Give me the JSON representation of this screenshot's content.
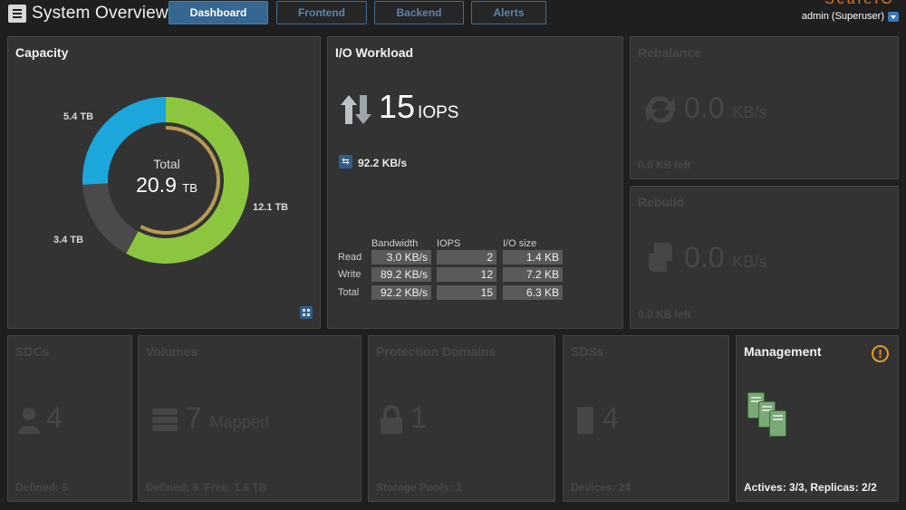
{
  "header": {
    "title": "System Overview",
    "tabs": [
      {
        "label": "Dashboard",
        "active": true
      },
      {
        "label": "Frontend",
        "active": false
      },
      {
        "label": "Backend",
        "active": false
      },
      {
        "label": "Alerts",
        "active": false
      }
    ],
    "brand": "ScaleIO",
    "user": "admin (Superuser)",
    "menu_icon": "hamburger-icon",
    "user_menu_icon": "chevron-down-icon"
  },
  "capacity": {
    "title": "Capacity",
    "total_label": "Total",
    "total_value": "20.9",
    "total_unit": "TB",
    "segments": [
      {
        "label": "12.1 TB",
        "value": 12.1,
        "color": "#8cc63f"
      },
      {
        "label": "3.4 TB",
        "value": 3.4,
        "color": "#4a4a4a"
      },
      {
        "label": "5.4 TB",
        "value": 5.4,
        "color": "#1ba6dc"
      }
    ],
    "inner_ring_color": "#b79a55",
    "icon": "grid-icon"
  },
  "io": {
    "title": "I/O Workload",
    "iops_value": "15",
    "iops_unit": "IOPS",
    "bandwidth": "92.2 KB/s",
    "headers": [
      "Bandwidth",
      "IOPS",
      "I/O size"
    ],
    "rows": [
      {
        "label": "Read",
        "bandwidth": "3.0 KB/s",
        "iops": "2",
        "size": "1.4 KB"
      },
      {
        "label": "Write",
        "bandwidth": "89.2 KB/s",
        "iops": "12",
        "size": "7.2 KB"
      },
      {
        "label": "Total",
        "bandwidth": "92.2 KB/s",
        "iops": "15",
        "size": "6.3 KB"
      }
    ]
  },
  "rebalance": {
    "title": "Rebalance",
    "value": "0.0",
    "unit": "KB/s",
    "footer": "0.0 KB left"
  },
  "rebuild": {
    "title": "Rebuild",
    "value": "0.0",
    "unit": "KB/s",
    "footer": "0.0 KB left"
  },
  "sdcs": {
    "title": "SDCs",
    "value": "4",
    "footer": "Defined: 5"
  },
  "volumes": {
    "title": "Volumes",
    "value": "7",
    "unit": "Mapped",
    "footer": "Defined: 8  Free: 1.6 TB"
  },
  "protection_domains": {
    "title": "Protection Domains",
    "value": "1",
    "footer": "Storage Pools: 1"
  },
  "sdss": {
    "title": "SDSs",
    "value": "4",
    "footer": "Devices: 24"
  },
  "management": {
    "title": "Management",
    "warning": "!",
    "footer": "Actives: 3/3, Replicas: 2/2"
  }
}
